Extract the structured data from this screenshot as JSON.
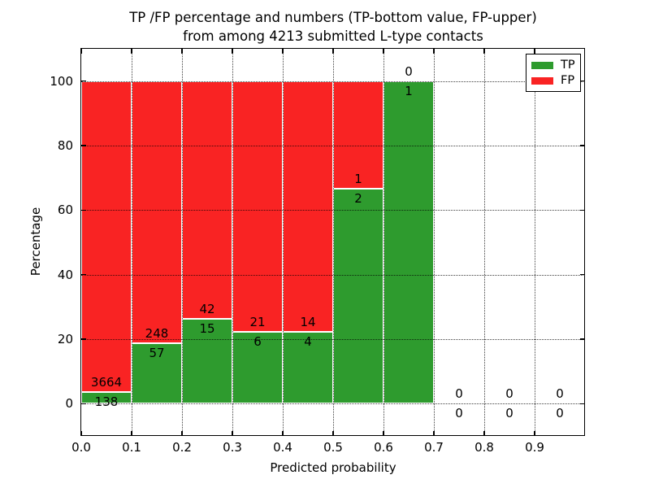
{
  "chart_data": {
    "type": "bar",
    "variant": "stacked-percentage",
    "title_line1": "TP /FP percentage and numbers (TP-bottom value, FP-upper)",
    "title_line2": "from among 4213 submitted L-type contacts",
    "xlabel": "Predicted probability",
    "ylabel": "Percentage",
    "total_submitted": 4213,
    "xlim": [
      0.0,
      1.0
    ],
    "ylim": [
      -10,
      110
    ],
    "bin_width": 0.1,
    "x_ticks": [
      0.0,
      0.1,
      0.2,
      0.3,
      0.4,
      0.5,
      0.6,
      0.7,
      0.8,
      0.9
    ],
    "x_tick_labels": [
      "0.0",
      "0.1",
      "0.2",
      "0.3",
      "0.4",
      "0.5",
      "0.6",
      "0.7",
      "0.8",
      "0.9"
    ],
    "y_ticks": [
      0,
      20,
      40,
      60,
      80,
      100
    ],
    "y_tick_labels": [
      "0",
      "20",
      "40",
      "60",
      "80",
      "100"
    ],
    "bins": [
      "0.0-0.1",
      "0.1-0.2",
      "0.2-0.3",
      "0.3-0.4",
      "0.4-0.5",
      "0.5-0.6",
      "0.6-0.7",
      "0.7-0.8",
      "0.8-0.9",
      "0.9-1.0"
    ],
    "series": [
      {
        "name": "TP",
        "color": "#2e9b2e",
        "values": [
          138,
          57,
          15,
          6,
          4,
          2,
          1,
          0,
          0,
          0
        ]
      },
      {
        "name": "FP",
        "color": "#f92323",
        "values": [
          3664,
          248,
          42,
          21,
          14,
          1,
          0,
          0,
          0,
          0
        ]
      }
    ],
    "tp_percent_of_bin": [
      3.63,
      18.69,
      26.32,
      22.22,
      22.22,
      66.67,
      100.0,
      null,
      null,
      null
    ],
    "grid": "dotted",
    "legend": {
      "location": "upper right",
      "entries": [
        "TP",
        "FP"
      ]
    }
  }
}
